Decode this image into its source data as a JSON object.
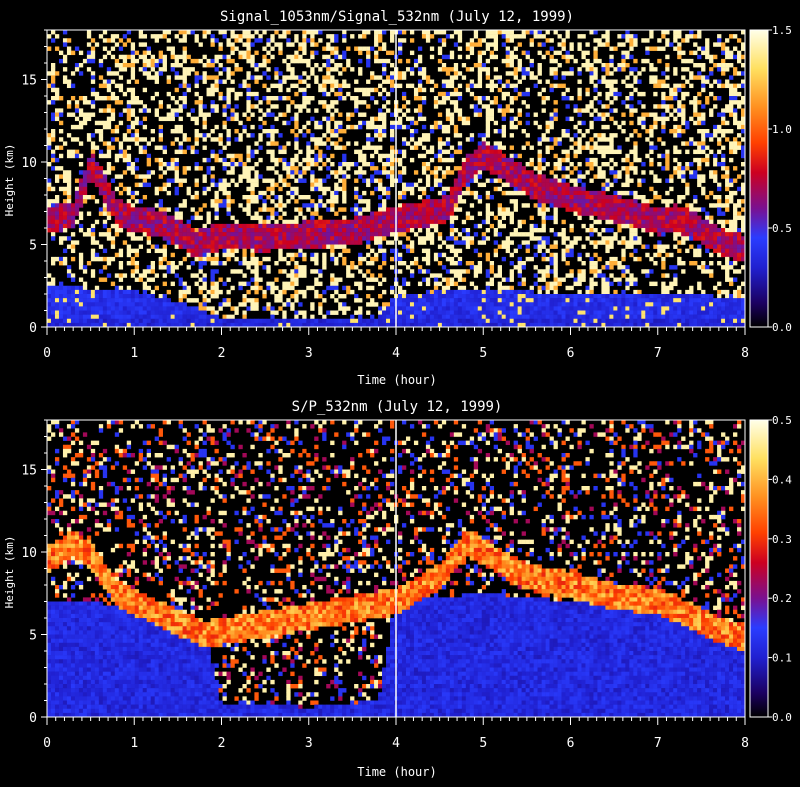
{
  "chart_data": [
    {
      "type": "heatmap",
      "title": "Signal_1053nm/Signal_532nm (July 12, 1999)",
      "xlabel": "Time (hour)",
      "ylabel": "Height (km)",
      "xlim": [
        0,
        8
      ],
      "ylim": [
        0,
        18
      ],
      "x_ticks": [
        "0",
        "1",
        "2",
        "3",
        "4",
        "5",
        "6",
        "7",
        "8"
      ],
      "y_ticks": [
        "0",
        "5",
        "10",
        "15"
      ],
      "colorbar": {
        "min": 0.0,
        "max": 1.5,
        "ticks": [
          "0.0",
          "0.5",
          "1.0",
          "1.5"
        ]
      },
      "colormap": [
        "#000000",
        "#1b0060",
        "#2020d0",
        "#2a3cff",
        "#7a1090",
        "#cc0020",
        "#ff4000",
        "#ff9020",
        "#ffe060",
        "#ffffe8"
      ],
      "features": {
        "cloud_layer_height_km": {
          "x": [
            0.0,
            0.3,
            0.5,
            0.6,
            0.8,
            1.0,
            1.2,
            1.4,
            1.6,
            1.7,
            2.0,
            2.5,
            3.0,
            3.5,
            4.0,
            4.3,
            4.6,
            4.8,
            5.0,
            5.3,
            5.6,
            6.0,
            6.4,
            6.8,
            7.0,
            7.2,
            7.4,
            7.6,
            7.8,
            8.0
          ],
          "y": [
            6.5,
            6.8,
            9.8,
            9.0,
            7.0,
            6.5,
            6.4,
            6.0,
            5.5,
            5.0,
            5.5,
            5.4,
            5.6,
            5.8,
            6.5,
            6.8,
            7.2,
            9.5,
            10.4,
            9.5,
            8.5,
            7.8,
            7.3,
            6.8,
            6.4,
            6.6,
            6.2,
            5.5,
            5.0,
            4.8
          ],
          "value": 0.55
        },
        "boundary_layer_top_km": {
          "x": [
            0.0,
            1.0,
            1.7,
            2.0,
            3.0,
            3.8,
            4.0,
            5.0,
            6.0,
            7.0,
            8.0
          ],
          "y": [
            2.5,
            2.2,
            1.2,
            0.5,
            0.5,
            0.6,
            2.0,
            2.3,
            2.0,
            2.0,
            1.8
          ]
        },
        "data_gap_time_hour": 4.0
      }
    },
    {
      "type": "heatmap",
      "title": "S/P_532nm (July 12, 1999)",
      "xlabel": "Time (hour)",
      "ylabel": "Height (km)",
      "xlim": [
        0,
        8
      ],
      "ylim": [
        0,
        18
      ],
      "x_ticks": [
        "0",
        "1",
        "2",
        "3",
        "4",
        "5",
        "6",
        "7",
        "8"
      ],
      "y_ticks": [
        "0",
        "5",
        "10",
        "15"
      ],
      "colorbar": {
        "min": 0.0,
        "max": 0.5,
        "ticks": [
          "0.0",
          "0.1",
          "0.2",
          "0.3",
          "0.4",
          "0.5"
        ]
      },
      "colormap": [
        "#000000",
        "#1b0060",
        "#2020d0",
        "#2a3cff",
        "#7a1090",
        "#cc0020",
        "#ff4000",
        "#ff9020",
        "#ffe060",
        "#ffffe8"
      ],
      "features": {
        "cloud_layer_height_km": {
          "x": [
            0.0,
            0.3,
            0.5,
            0.8,
            1.0,
            1.3,
            1.6,
            1.8,
            4.0,
            4.5,
            4.8,
            5.0,
            5.5,
            6.0,
            6.5,
            7.0,
            7.3,
            7.6,
            8.0
          ],
          "y": [
            9.5,
            10.5,
            9.8,
            7.5,
            7.0,
            6.2,
            5.5,
            5.0,
            7.0,
            8.5,
            10.5,
            10.0,
            8.5,
            8.0,
            7.3,
            7.0,
            6.3,
            5.5,
            4.7
          ],
          "value": 0.3
        },
        "aerosol_layer_top_km": {
          "x": [
            0.0,
            1.0,
            1.8,
            2.0,
            3.0,
            3.8,
            4.0,
            5.0,
            6.0,
            7.0,
            8.0
          ],
          "y": [
            7.0,
            6.8,
            5.5,
            0.8,
            0.6,
            1.0,
            7.0,
            7.5,
            7.0,
            6.5,
            5.0
          ],
          "value": 0.08
        },
        "data_gap_time_hour": 4.0
      }
    }
  ]
}
